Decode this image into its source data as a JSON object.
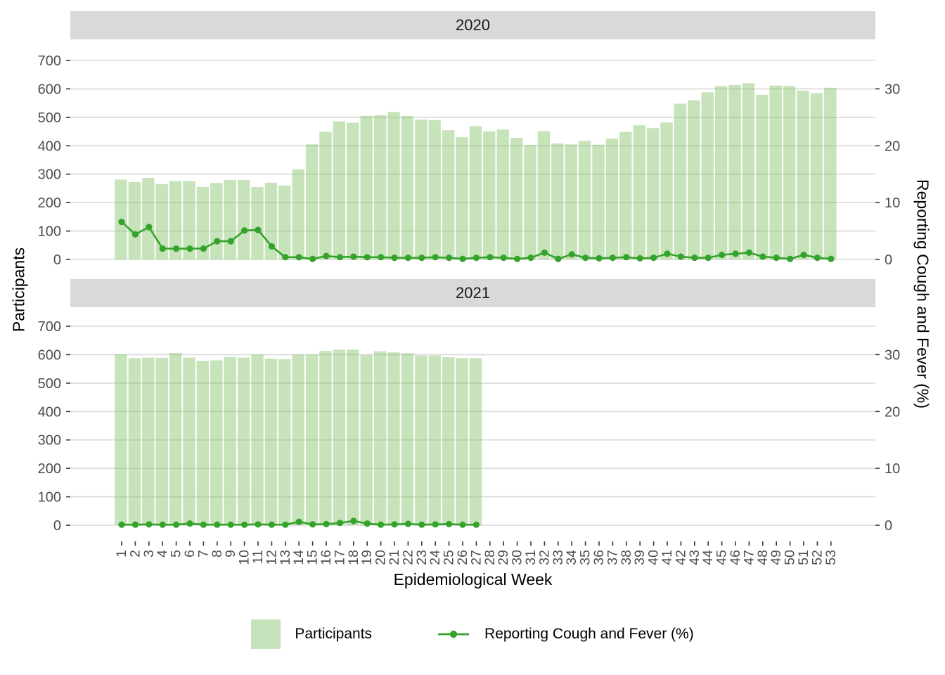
{
  "style": {
    "bar_fill": "rgba(128,193,102,0.45)",
    "bar_fill_solid": "#c6e2ba",
    "line_color": "#35a32b",
    "grid_color": "#d9d9d9",
    "strip_bg": "#d9d9d9",
    "axis_text_color": "#4d4d4d",
    "tick_color": "#333333"
  },
  "x_axis": {
    "title": "Epidemiological Week",
    "labels": [
      1,
      2,
      3,
      4,
      5,
      6,
      7,
      8,
      9,
      10,
      11,
      12,
      13,
      14,
      15,
      16,
      17,
      18,
      19,
      20,
      21,
      22,
      23,
      24,
      25,
      26,
      27,
      28,
      29,
      30,
      31,
      32,
      33,
      34,
      35,
      36,
      37,
      38,
      39,
      40,
      41,
      42,
      43,
      44,
      45,
      46,
      47,
      48,
      49,
      50,
      51,
      52,
      53
    ]
  },
  "left_axis": {
    "title": "Participants",
    "ticks": [
      0,
      100,
      200,
      300,
      400,
      500,
      600,
      700
    ],
    "range": [
      0,
      700
    ]
  },
  "right_axis": {
    "title": "Reporting Cough and Fever (%)",
    "ticks": [
      0,
      10,
      20,
      30
    ],
    "range": [
      0,
      35
    ]
  },
  "legend": [
    {
      "label": "Participants",
      "key": "bar-swatch"
    },
    {
      "label": "Reporting Cough and Fever (%)",
      "key": "line-with-dot"
    }
  ],
  "chart_data": [
    {
      "type": "bar",
      "facet": "2020",
      "categories": [
        1,
        2,
        3,
        4,
        5,
        6,
        7,
        8,
        9,
        10,
        11,
        12,
        13,
        14,
        15,
        16,
        17,
        18,
        19,
        20,
        21,
        22,
        23,
        24,
        25,
        26,
        27,
        28,
        29,
        30,
        31,
        32,
        33,
        34,
        35,
        36,
        37,
        38,
        39,
        40,
        41,
        42,
        43,
        44,
        45,
        46,
        47,
        48,
        49,
        50,
        51,
        52,
        53
      ],
      "series": [
        {
          "name": "Participants",
          "type": "bar",
          "axis": "left",
          "values": [
            281,
            272,
            287,
            265,
            276,
            276,
            255,
            269,
            280,
            280,
            255,
            270,
            260,
            317,
            405,
            449,
            486,
            481,
            505,
            507,
            519,
            505,
            492,
            490,
            455,
            430,
            469,
            451,
            457,
            428,
            403,
            451,
            408,
            405,
            417,
            404,
            425,
            449,
            472,
            462,
            482,
            548,
            560,
            588,
            610,
            614,
            620,
            579,
            612,
            610,
            594,
            585,
            604
          ]
        },
        {
          "name": "Reporting Cough and Fever (%)",
          "type": "line",
          "axis": "right",
          "values": [
            6.6,
            4.4,
            5.7,
            1.9,
            1.9,
            1.9,
            1.9,
            3.2,
            3.2,
            5.1,
            5.2,
            2.3,
            0.4,
            0.4,
            0.1,
            0.6,
            0.4,
            0.5,
            0.4,
            0.4,
            0.3,
            0.3,
            0.3,
            0.4,
            0.3,
            0.1,
            0.3,
            0.4,
            0.3,
            0.1,
            0.3,
            1.2,
            0.1,
            0.9,
            0.3,
            0.2,
            0.3,
            0.4,
            0.2,
            0.3,
            1.0,
            0.5,
            0.3,
            0.3,
            0.8,
            1.0,
            1.2,
            0.5,
            0.3,
            0.1,
            0.8,
            0.3,
            0.1
          ]
        }
      ],
      "left_ylim": [
        0,
        700
      ],
      "right_ylim": [
        0,
        35
      ],
      "grid": true
    },
    {
      "type": "bar",
      "facet": "2021",
      "categories": [
        1,
        2,
        3,
        4,
        5,
        6,
        7,
        8,
        9,
        10,
        11,
        12,
        13,
        14,
        15,
        16,
        17,
        18,
        19,
        20,
        21,
        22,
        23,
        24,
        25,
        26,
        27
      ],
      "series": [
        {
          "name": "Participants",
          "type": "bar",
          "axis": "left",
          "values": [
            601,
            588,
            590,
            589,
            606,
            590,
            578,
            580,
            592,
            590,
            600,
            586,
            584,
            600,
            600,
            613,
            618,
            618,
            598,
            612,
            608,
            605,
            597,
            597,
            591,
            588,
            588
          ]
        },
        {
          "name": "Reporting Cough and Fever (%)",
          "type": "line",
          "axis": "right",
          "values": [
            0.1,
            0.1,
            0.15,
            0.1,
            0.1,
            0.3,
            0.1,
            0.1,
            0.1,
            0.1,
            0.15,
            0.1,
            0.1,
            0.6,
            0.15,
            0.2,
            0.4,
            0.75,
            0.3,
            0.1,
            0.15,
            0.25,
            0.1,
            0.15,
            0.2,
            0.1,
            0.1
          ]
        }
      ],
      "left_ylim": [
        0,
        700
      ],
      "right_ylim": [
        0,
        35
      ],
      "grid": true
    }
  ]
}
